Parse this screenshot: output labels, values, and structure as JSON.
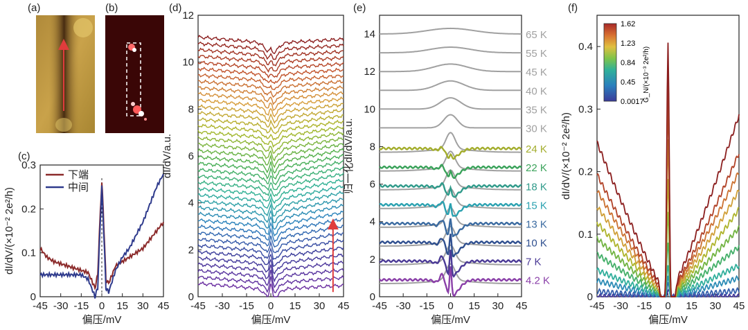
{
  "panels": {
    "a": {
      "label": "(a)"
    },
    "b": {
      "label": "(b)"
    },
    "c": {
      "label": "(c)"
    },
    "d": {
      "label": "(d)"
    },
    "e": {
      "label": "(e)"
    },
    "f": {
      "label": "(f)"
    }
  },
  "colors": {
    "lower_end": "#8b2a2a",
    "middle": "#2e3a8c",
    "arrow": "#e03c3c",
    "gray_curve": "#a0a0a0"
  },
  "chart_data": [
    {
      "panel": "c",
      "type": "line",
      "xlabel": "偏压/mV",
      "ylabel": "dI/dV/(×10⁻² 2e²/h)",
      "xlim": [
        -45,
        45
      ],
      "ylim": [
        0,
        0.3
      ],
      "xticks": [
        "-45",
        "-30",
        "-15",
        "0",
        "15",
        "30",
        "45"
      ],
      "yticks": [
        "0",
        "0.1",
        "0.2",
        "0.3"
      ],
      "legend": [
        "下端",
        "中间"
      ],
      "series": [
        {
          "name": "下端",
          "x": [
            -45,
            -40,
            -35,
            -30,
            -25,
            -20,
            -15,
            -10,
            -5,
            -3,
            -1,
            0,
            1,
            3,
            5,
            10,
            15,
            20,
            25,
            30,
            35,
            40,
            45
          ],
          "y": [
            0.11,
            0.09,
            0.08,
            0.075,
            0.07,
            0.065,
            0.06,
            0.055,
            0.02,
            0.05,
            0.2,
            0.26,
            0.2,
            0.04,
            0.03,
            0.07,
            0.08,
            0.09,
            0.1,
            0.11,
            0.13,
            0.15,
            0.17
          ]
        },
        {
          "name": "中间",
          "x": [
            -45,
            -40,
            -35,
            -30,
            -25,
            -20,
            -15,
            -10,
            -5,
            -3,
            -1,
            0,
            1,
            3,
            5,
            10,
            15,
            20,
            25,
            30,
            35,
            40,
            45
          ],
          "y": [
            0.05,
            0.05,
            0.05,
            0.05,
            0.05,
            0.05,
            0.05,
            0.04,
            0.0,
            0.02,
            0.18,
            0.25,
            0.18,
            0.02,
            0.01,
            0.06,
            0.09,
            0.11,
            0.14,
            0.17,
            0.21,
            0.25,
            0.28
          ]
        }
      ]
    },
    {
      "panel": "d",
      "type": "line",
      "xlabel": "偏压/mV",
      "ylabel": "dI/dV/a.u.",
      "xlim": [
        -45,
        45
      ],
      "ylim": [
        0,
        12
      ],
      "xticks": [
        "-45",
        "-30",
        "-15",
        "0",
        "15",
        "30",
        "45"
      ],
      "yticks": [
        "0",
        "2",
        "4",
        "6",
        "8",
        "10",
        "12"
      ],
      "n_curves": 40,
      "offset_start": 0.3,
      "offset_end": 10.8,
      "color_scale": "purple→blue→teal→green→yellow→orange→red"
    },
    {
      "panel": "e",
      "type": "line",
      "xlabel": "偏压/mV",
      "ylabel": "归一化dI/dV/a.u.",
      "xlim": [
        -45,
        45
      ],
      "ylim": [
        0,
        15
      ],
      "xticks": [
        "-45",
        "-30",
        "-15",
        "0",
        "15",
        "30",
        "45"
      ],
      "yticks": [
        "0",
        "2",
        "4",
        "6",
        "8",
        "10",
        "12",
        "14"
      ],
      "series": [
        {
          "name": "4.2 K",
          "offset": 0.9,
          "color": "#8a3fa8"
        },
        {
          "name": "7 K",
          "offset": 1.9,
          "color": "#4b3a96"
        },
        {
          "name": "10 K",
          "offset": 2.9,
          "color": "#2f4f8f"
        },
        {
          "name": "13 K",
          "offset": 3.9,
          "color": "#3a6aa0"
        },
        {
          "name": "15 K",
          "offset": 4.9,
          "color": "#2aa1b0"
        },
        {
          "name": "18 K",
          "offset": 5.9,
          "color": "#2f9a8a"
        },
        {
          "name": "22 K",
          "offset": 6.9,
          "color": "#3aa25a"
        },
        {
          "name": "24 K",
          "offset": 7.9,
          "color": "#a3ad2c"
        },
        {
          "name": "30 K",
          "offset": 9.0,
          "color": "#a0a0a0"
        },
        {
          "name": "35 K",
          "offset": 10.0,
          "color": "#a0a0a0"
        },
        {
          "name": "40 K",
          "offset": 11.0,
          "color": "#a0a0a0"
        },
        {
          "name": "45 K",
          "offset": 12.0,
          "color": "#a0a0a0"
        },
        {
          "name": "55 K",
          "offset": 13.0,
          "color": "#a0a0a0"
        },
        {
          "name": "65 K",
          "offset": 14.0,
          "color": "#a0a0a0"
        }
      ]
    },
    {
      "panel": "f",
      "type": "line",
      "xlabel": "偏压/mV",
      "ylabel": "dI/dV/(×10⁻² 2e²/h)",
      "xlim": [
        -45,
        45
      ],
      "ylim": [
        0,
        0.45
      ],
      "xticks": [
        "-45",
        "-30",
        "-15",
        "0",
        "15",
        "30",
        "45"
      ],
      "yticks": [
        "0",
        "0.1",
        "0.2",
        "0.3",
        "0.4"
      ],
      "colorbar": {
        "title": "G_N/(×10⁻³ 2e²/h)",
        "ticks": [
          "1.62",
          "1.23",
          "0.84",
          "0.45",
          "0.0017"
        ]
      },
      "peak_heights": [
        0.01,
        0.02,
        0.03,
        0.05,
        0.09,
        0.14,
        0.19,
        0.25,
        0.31,
        0.36,
        0.41
      ],
      "edge_values": [
        0.0,
        0.01,
        0.03,
        0.05,
        0.08,
        0.11,
        0.14,
        0.17,
        0.2,
        0.23,
        0.29
      ]
    }
  ]
}
